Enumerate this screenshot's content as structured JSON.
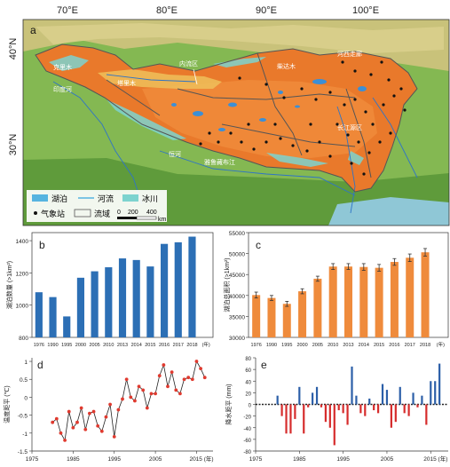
{
  "map": {
    "panel_label": "a",
    "lon_ticks": [
      "70°E",
      "80°E",
      "90°E",
      "100°E"
    ],
    "lat_ticks": [
      "40°N",
      "30°N"
    ],
    "region_labels": [
      "克里木",
      "印度河",
      "塔里木",
      "内流区",
      "柴达木",
      "河西走廊",
      "恒河",
      "雅鲁藏布江",
      "长江源区"
    ],
    "legend": {
      "lake": "湖泊",
      "river": "河流",
      "glacier": "冰川",
      "station": "气象站",
      "basin": "流域",
      "scale_labels": [
        "0",
        "200",
        "400"
      ],
      "scale_unit": "km"
    },
    "colors": {
      "sea": "#8fc7d6",
      "lowland": "#7fae4a",
      "plateau": "#e9792b",
      "lake": "#56b4e0",
      "glacier": "#7dd3cf",
      "boundary": "#555555"
    }
  },
  "chart_data": [
    {
      "panel": "b",
      "type": "bar",
      "categories": [
        "1976",
        "1990",
        "1995",
        "2000",
        "2005",
        "2010",
        "2013",
        "2014",
        "2015",
        "2016",
        "2017",
        "2018",
        "(年)"
      ],
      "values": [
        1080,
        1050,
        930,
        1170,
        1210,
        1235,
        1290,
        1280,
        1240,
        1380,
        1390,
        1425,
        null
      ],
      "ylabel": "湖泊数量 (>1km²)",
      "yticks": [
        800,
        1000,
        1200,
        1400
      ],
      "ylim": [
        800,
        1450
      ],
      "color": "#2c6fb5"
    },
    {
      "panel": "c",
      "type": "bar",
      "categories": [
        "1976",
        "1990",
        "1995",
        "2000",
        "2005",
        "2010",
        "2013",
        "2014",
        "2015",
        "2016",
        "2017",
        "2018",
        "(年)"
      ],
      "values": [
        40100,
        39400,
        38000,
        41000,
        44000,
        46900,
        46900,
        46800,
        46600,
        48000,
        49000,
        50300,
        null
      ],
      "errors": [
        700,
        600,
        600,
        600,
        600,
        700,
        700,
        800,
        800,
        800,
        900,
        900,
        null
      ],
      "ylabel": "湖泊总面积 (>1km²)",
      "yticks": [
        30000,
        35000,
        40000,
        45000,
        50000,
        55000
      ],
      "ylim": [
        30000,
        55000
      ],
      "color": "#ef8b3c"
    },
    {
      "panel": "d",
      "type": "line",
      "x": [
        1980,
        1981,
        1982,
        1983,
        1984,
        1985,
        1986,
        1987,
        1988,
        1989,
        1990,
        1991,
        1992,
        1993,
        1994,
        1995,
        1996,
        1997,
        1998,
        1999,
        2000,
        2001,
        2002,
        2003,
        2004,
        2005,
        2006,
        2007,
        2008,
        2009,
        2010,
        2011,
        2012,
        2013,
        2014,
        2015,
        2016,
        2017
      ],
      "y": [
        -0.7,
        -0.6,
        -1.0,
        -1.2,
        -0.4,
        -0.85,
        -0.7,
        -0.3,
        -0.9,
        -0.45,
        -0.4,
        -0.8,
        -0.95,
        -0.55,
        -0.2,
        -1.1,
        -0.35,
        -0.05,
        0.5,
        0.0,
        -0.1,
        0.3,
        0.2,
        -0.3,
        0.1,
        0.1,
        0.6,
        0.9,
        0.3,
        0.7,
        0.2,
        0.1,
        0.5,
        0.55,
        0.5,
        1.0,
        0.8,
        0.55
      ],
      "ylabel": "温度距平 (℃)",
      "yticks": [
        -1.5,
        -1.0,
        -0.5,
        0,
        0.5,
        1.0
      ],
      "ylim": [
        -1.5,
        1.1
      ],
      "xticks": [
        "1975",
        "1985",
        "1995",
        "2005",
        "2015 (年)"
      ],
      "xlim": [
        1975,
        2019
      ],
      "color": "#e03a2f"
    },
    {
      "panel": "e",
      "type": "bar",
      "x": [
        1980,
        1981,
        1982,
        1983,
        1984,
        1985,
        1986,
        1987,
        1988,
        1989,
        1990,
        1991,
        1992,
        1993,
        1994,
        1995,
        1996,
        1997,
        1998,
        1999,
        2000,
        2001,
        2002,
        2003,
        2004,
        2005,
        2006,
        2007,
        2008,
        2009,
        2010,
        2011,
        2012,
        2013,
        2014,
        2015,
        2016,
        2017
      ],
      "values": [
        15,
        -20,
        -50,
        -50,
        -25,
        30,
        -50,
        -5,
        20,
        30,
        -5,
        -30,
        -40,
        -70,
        -10,
        -15,
        -35,
        65,
        15,
        -15,
        -20,
        10,
        -10,
        -15,
        35,
        25,
        -40,
        -30,
        30,
        -15,
        -20,
        20,
        -5,
        15,
        -35,
        40,
        40,
        70
      ],
      "ylabel": "降水距平 (mm)",
      "yticks": [
        -80,
        -60,
        -40,
        -20,
        0,
        20,
        40,
        60,
        80
      ],
      "ylim": [
        -80,
        80
      ],
      "xticks": [
        "1975",
        "1985",
        "1995",
        "2005",
        "2015 (年)"
      ],
      "xlim": [
        1975,
        2019
      ],
      "pos_color": "#2c5fa8",
      "neg_color": "#d62c2c"
    }
  ]
}
